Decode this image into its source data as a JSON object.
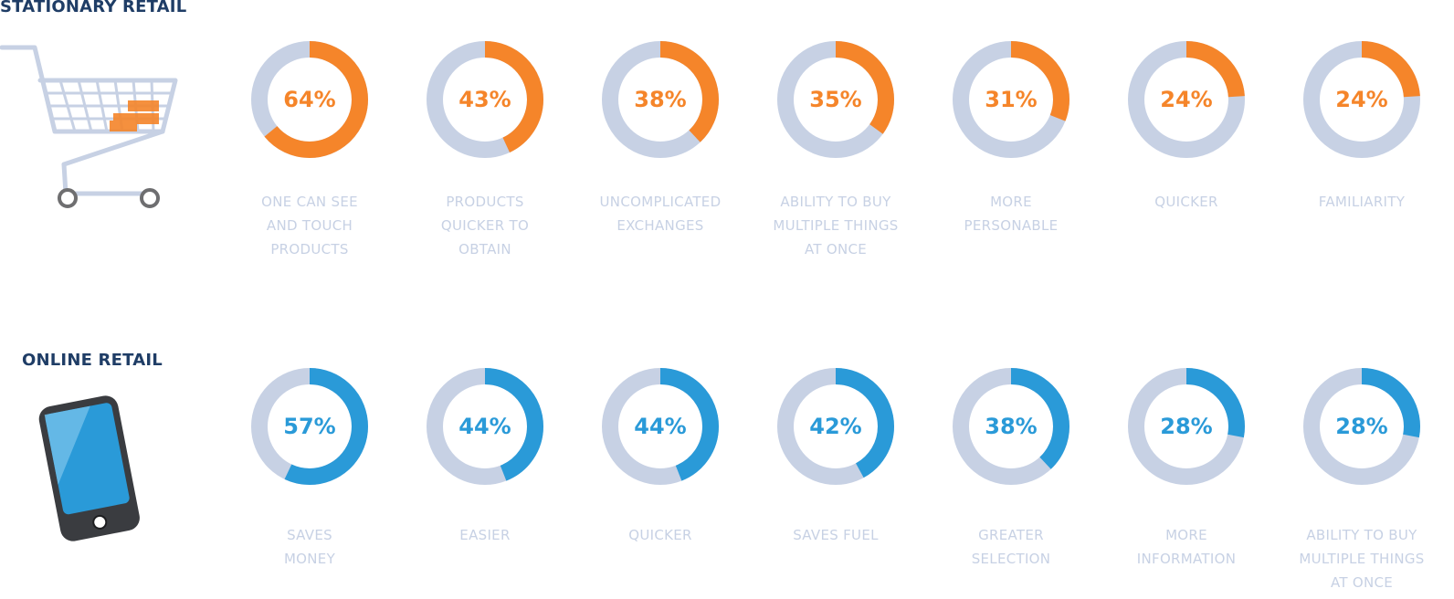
{
  "colors": {
    "title": "#1f3d66",
    "track": "#c7d1e4",
    "stationary": "#f5852a",
    "online": "#2a9ad8",
    "label": "#c7d1e4"
  },
  "icons": {
    "stationary": "shopping-cart-icon",
    "online": "smartphone-icon"
  },
  "chart_data": [
    {
      "type": "pie",
      "title": "STATIONARY RETAIL",
      "series": [
        {
          "name": "ONE CAN SEE\nAND TOUCH\nPRODUCTS",
          "value": 64,
          "display": "64%"
        },
        {
          "name": "PRODUCTS\nQUICKER TO\nOBTAIN",
          "value": 43,
          "display": "43%"
        },
        {
          "name": "UNCOMPLICATED\nEXCHANGES",
          "value": 38,
          "display": "38%"
        },
        {
          "name": "ABILITY TO BUY\nMULTIPLE THINGS\nAT ONCE",
          "value": 35,
          "display": "35%"
        },
        {
          "name": "MORE\nPERSONABLE",
          "value": 31,
          "display": "31%"
        },
        {
          "name": "QUICKER",
          "value": 24,
          "display": "24%"
        },
        {
          "name": "FAMILIARITY",
          "value": 24,
          "display": "24%"
        }
      ]
    },
    {
      "type": "pie",
      "title": "ONLINE RETAIL",
      "series": [
        {
          "name": "SAVES\nMONEY",
          "value": 57,
          "display": "57%"
        },
        {
          "name": "EASIER",
          "value": 44,
          "display": "44%"
        },
        {
          "name": "QUICKER",
          "value": 44,
          "display": "44%"
        },
        {
          "name": "SAVES FUEL",
          "value": 42,
          "display": "42%"
        },
        {
          "name": "GREATER\nSELECTION",
          "value": 38,
          "display": "38%"
        },
        {
          "name": "MORE\nINFORMATION",
          "value": 28,
          "display": "28%"
        },
        {
          "name": "ABILITY TO BUY\nMULTIPLE THINGS\nAT ONCE",
          "value": 28,
          "display": "28%"
        }
      ]
    }
  ]
}
